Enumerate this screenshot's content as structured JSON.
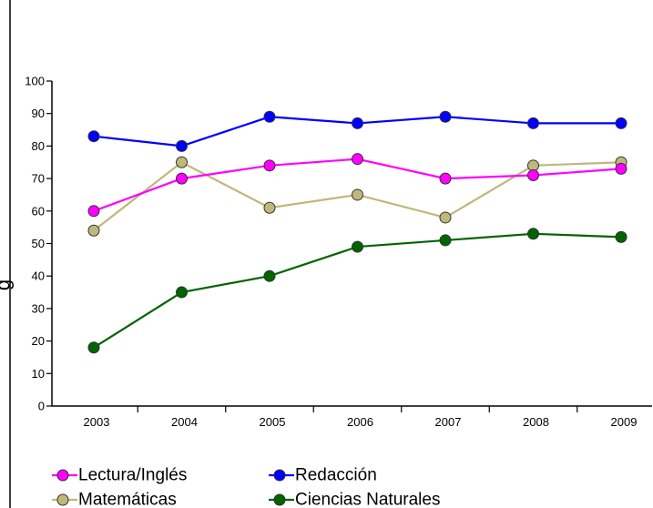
{
  "chart_data": {
    "type": "line",
    "title": "",
    "xlabel": "",
    "ylabel": "",
    "ylim": [
      0,
      100
    ],
    "yticks": [
      0,
      10,
      20,
      30,
      40,
      50,
      60,
      70,
      80,
      90,
      100
    ],
    "categories": [
      "2003",
      "2004",
      "2005",
      "2006",
      "2007",
      "2008",
      "2009"
    ],
    "grid": false,
    "legend_position": "bottom",
    "ylabel_fragment": "g",
    "series": [
      {
        "name": "Lectura/Inglés",
        "color": "#ff00ff",
        "values": [
          60,
          70,
          74,
          76,
          70,
          71,
          73
        ]
      },
      {
        "name": "Redacción",
        "color": "#0000ff",
        "values": [
          83,
          80,
          89,
          87,
          89,
          87,
          87
        ]
      },
      {
        "name": "Matemáticas",
        "color": "#c0b87a",
        "values": [
          54,
          75,
          61,
          65,
          58,
          74,
          75
        ]
      },
      {
        "name": "Ciencias Naturales",
        "color": "#006400",
        "values": [
          18,
          35,
          40,
          49,
          51,
          53,
          52
        ]
      }
    ]
  }
}
